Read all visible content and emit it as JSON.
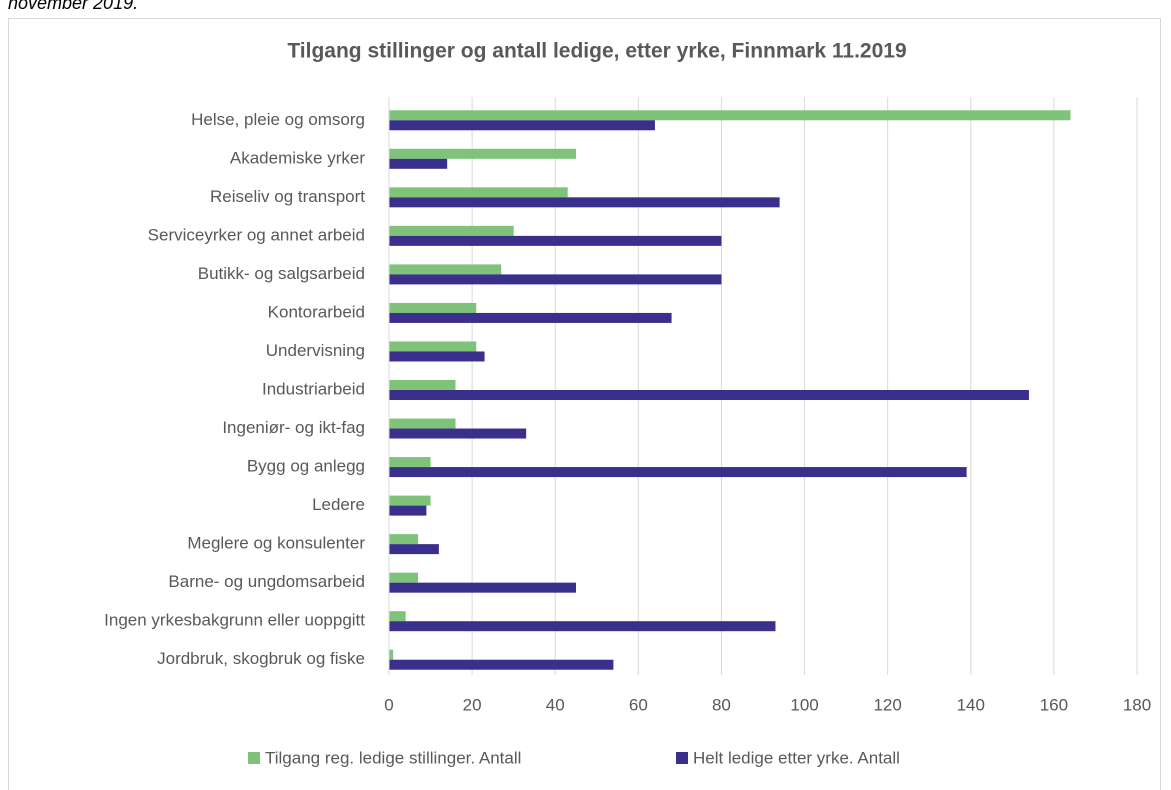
{
  "caption": "november 2019.",
  "chart_data": {
    "type": "bar",
    "orientation": "horizontal",
    "title": "Tilgang stillinger og antall ledige, etter yrke, Finnmark 11.2019",
    "categories": [
      "Helse, pleie og omsorg",
      "Akademiske yrker",
      "Reiseliv og transport",
      "Serviceyrker og annet arbeid",
      "Butikk- og salgsarbeid",
      "Kontorarbeid",
      "Undervisning",
      "Industriarbeid",
      "Ingeniør- og ikt-fag",
      "Bygg og anlegg",
      "Ledere",
      "Meglere og konsulenter",
      "Barne- og ungdomsarbeid",
      "Ingen yrkesbakgrunn eller uoppgitt",
      "Jordbruk, skogbruk og fiske"
    ],
    "series": [
      {
        "name": "Tilgang reg. ledige stillinger. Antall",
        "color": "#7fc27a",
        "values": [
          164,
          45,
          43,
          30,
          27,
          21,
          21,
          16,
          16,
          10,
          10,
          7,
          7,
          4,
          1
        ]
      },
      {
        "name": "Helt ledige etter yrke. Antall",
        "color": "#3a2f8a",
        "values": [
          64,
          14,
          94,
          80,
          80,
          68,
          23,
          154,
          33,
          139,
          9,
          12,
          45,
          93,
          54
        ]
      }
    ],
    "xlim": [
      0,
      180
    ],
    "xticks": [
      0,
      20,
      40,
      60,
      80,
      100,
      120,
      140,
      160,
      180
    ],
    "grid": true,
    "legend": "bottom"
  }
}
